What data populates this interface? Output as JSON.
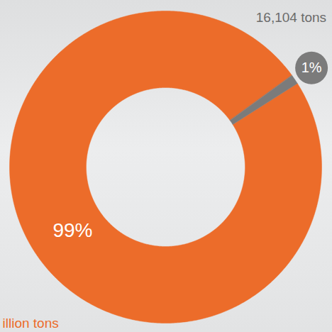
{
  "chart_data": {
    "type": "pie",
    "values": [
      99,
      1
    ],
    "value_labels": [
      "99%",
      "1%"
    ],
    "colors": [
      "#ec6c2a",
      "#7b7b7b"
    ],
    "annotations": [
      "illion tons",
      "16,104 tons"
    ],
    "data_labels": true
  }
}
